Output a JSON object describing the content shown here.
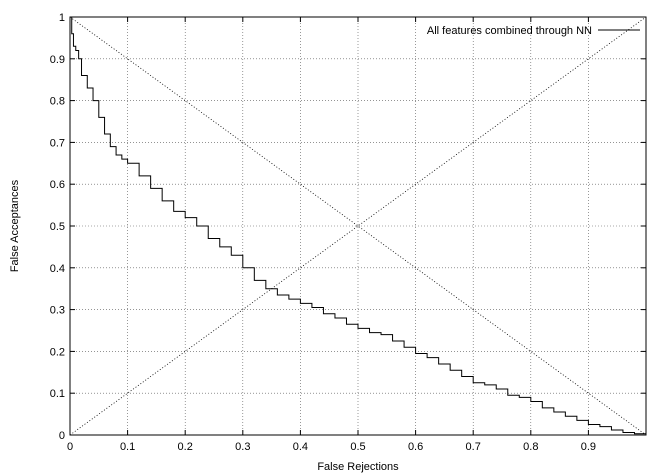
{
  "chart_data": {
    "type": "line",
    "title": "",
    "xlabel": "False Rejections",
    "ylabel": "False Acceptances",
    "xlim": [
      0,
      1
    ],
    "ylim": [
      0,
      1
    ],
    "xticks": [
      "0",
      "0.1",
      "0.2",
      "0.3",
      "0.4",
      "0.5",
      "0.6",
      "0.7",
      "0.8",
      "0.9"
    ],
    "yticks": [
      "0",
      "0.1",
      "0.2",
      "0.3",
      "0.4",
      "0.5",
      "0.6",
      "0.7",
      "0.8",
      "0.9",
      "1"
    ],
    "grid": true,
    "legend_position": "top-right",
    "reference_lines": [
      {
        "style": "dotted",
        "x": [
          0,
          1
        ],
        "y": [
          1,
          0
        ]
      },
      {
        "style": "dotted",
        "x": [
          0,
          1
        ],
        "y": [
          0,
          1
        ]
      }
    ],
    "series": [
      {
        "name": "All features combined through NN",
        "style": "solid",
        "color": "#000000",
        "x": [
          0,
          0.003,
          0.006,
          0.01,
          0.015,
          0.02,
          0.03,
          0.04,
          0.05,
          0.06,
          0.07,
          0.08,
          0.09,
          0.1,
          0.12,
          0.14,
          0.16,
          0.18,
          0.2,
          0.22,
          0.24,
          0.26,
          0.28,
          0.3,
          0.32,
          0.34,
          0.36,
          0.38,
          0.4,
          0.42,
          0.44,
          0.46,
          0.48,
          0.5,
          0.52,
          0.54,
          0.56,
          0.58,
          0.6,
          0.62,
          0.64,
          0.66,
          0.68,
          0.7,
          0.72,
          0.74,
          0.76,
          0.78,
          0.8,
          0.82,
          0.84,
          0.86,
          0.88,
          0.9,
          0.92,
          0.94,
          0.96,
          0.98,
          1.0
        ],
        "y": [
          1.0,
          0.96,
          0.93,
          0.92,
          0.9,
          0.86,
          0.83,
          0.8,
          0.76,
          0.72,
          0.69,
          0.67,
          0.66,
          0.65,
          0.62,
          0.59,
          0.56,
          0.535,
          0.52,
          0.5,
          0.47,
          0.45,
          0.43,
          0.4,
          0.37,
          0.35,
          0.335,
          0.325,
          0.315,
          0.305,
          0.29,
          0.28,
          0.265,
          0.255,
          0.245,
          0.24,
          0.225,
          0.21,
          0.195,
          0.185,
          0.17,
          0.155,
          0.14,
          0.125,
          0.12,
          0.11,
          0.095,
          0.09,
          0.08,
          0.065,
          0.055,
          0.045,
          0.035,
          0.025,
          0.02,
          0.012,
          0.006,
          0.003,
          0.0
        ]
      }
    ]
  }
}
